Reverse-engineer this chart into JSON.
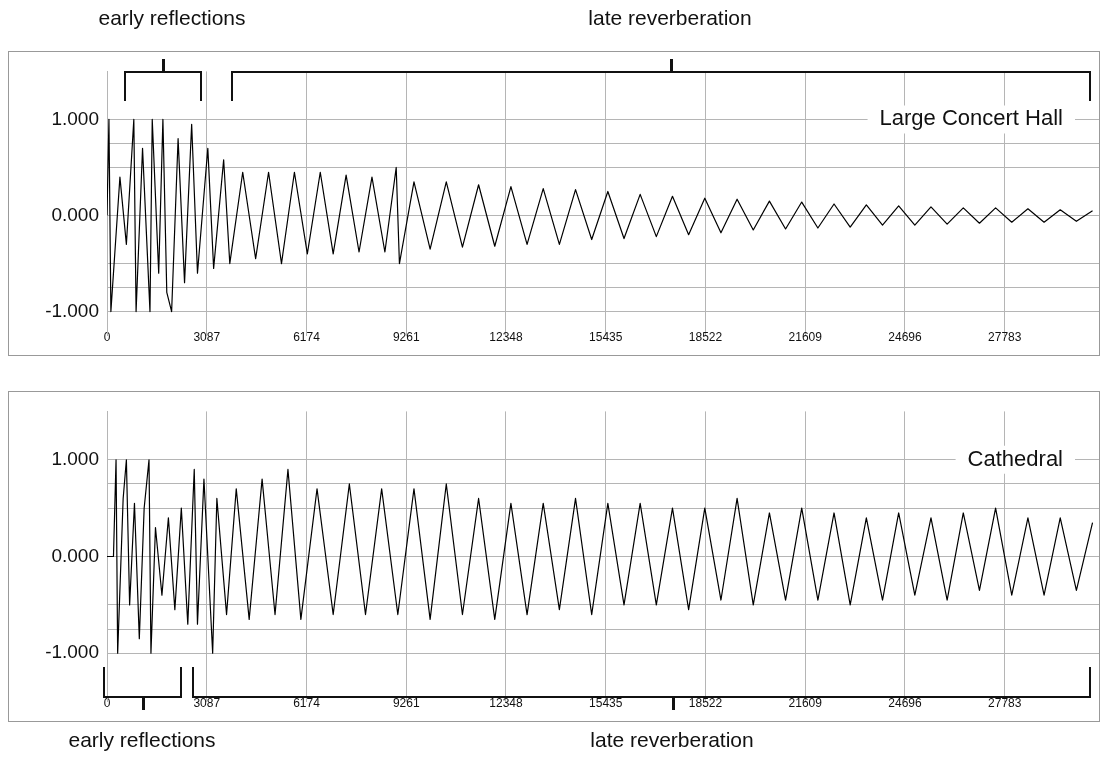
{
  "chart_data": [
    {
      "type": "line",
      "title": "Large Concert Hall",
      "annotations": [
        "early reflections",
        "late reverberation"
      ],
      "xlim": [
        0,
        30700
      ],
      "xticks": [
        0,
        3087,
        6174,
        9261,
        12348,
        15435,
        18522,
        21609,
        24696,
        27783
      ],
      "ylim": [
        -1.25,
        1.5
      ],
      "yticks": [
        {
          "value": -1,
          "label": "-1.000"
        },
        {
          "value": -0.75,
          "label": null
        },
        {
          "value": -0.5,
          "label": null
        },
        {
          "value": 0,
          "label": "0.000"
        },
        {
          "value": 0.5,
          "label": null
        },
        {
          "value": 0.75,
          "label": null
        },
        {
          "value": 1,
          "label": "1.000"
        }
      ],
      "grid": true,
      "legend": false,
      "marker": "none",
      "line_style": "solid",
      "series": [
        {
          "color": "#000000",
          "x": [
            0,
            60,
            120,
            400,
            600,
            830,
            900,
            1100,
            1330,
            1400,
            1600,
            1730,
            1850,
            2000,
            2200,
            2400,
            2620,
            2800,
            3120,
            3300,
            3610,
            3800,
            4200,
            4600,
            5000,
            5400,
            5800,
            6200,
            6600,
            7000,
            7400,
            7800,
            8200,
            8600,
            8950,
            9050,
            9500,
            10000,
            10500,
            11000,
            11500,
            12000,
            12500,
            13000,
            13500,
            14000,
            14500,
            15000,
            15500,
            16000,
            16500,
            17000,
            17500,
            18000,
            18500,
            19000,
            19500,
            20000,
            20500,
            21000,
            21500,
            22000,
            22500,
            23000,
            23500,
            24000,
            24500,
            25000,
            25500,
            26000,
            26500,
            27000,
            27500,
            28000,
            28500,
            29000,
            29500,
            30000,
            30500
          ],
          "values": [
            0,
            1.0,
            -1.0,
            0.4,
            -0.3,
            1.0,
            -1.0,
            0.7,
            -1.0,
            1.0,
            -0.6,
            1.0,
            -0.8,
            -1.0,
            0.8,
            -0.7,
            0.95,
            -0.6,
            0.7,
            -0.55,
            0.58,
            -0.5,
            0.45,
            -0.45,
            0.45,
            -0.5,
            0.45,
            -0.4,
            0.45,
            -0.4,
            0.42,
            -0.38,
            0.4,
            -0.38,
            0.5,
            -0.5,
            0.35,
            -0.35,
            0.35,
            -0.33,
            0.32,
            -0.32,
            0.3,
            -0.3,
            0.28,
            -0.3,
            0.27,
            -0.25,
            0.25,
            -0.24,
            0.22,
            -0.22,
            0.2,
            -0.2,
            0.18,
            -0.18,
            0.17,
            -0.15,
            0.15,
            -0.14,
            0.14,
            -0.13,
            0.12,
            -0.12,
            0.11,
            -0.1,
            0.1,
            -0.1,
            0.09,
            -0.09,
            0.08,
            -0.08,
            0.08,
            -0.07,
            0.07,
            -0.07,
            0.06,
            -0.06,
            0.05
          ]
        }
      ]
    },
    {
      "type": "line",
      "title": "Cathedral",
      "annotations": [
        "early reflections",
        "late reverberation"
      ],
      "xlim": [
        0,
        30700
      ],
      "xticks": [
        0,
        3087,
        6174,
        9261,
        12348,
        15435,
        18522,
        21609,
        24696,
        27783
      ],
      "ylim": [
        -1.5,
        1.5
      ],
      "yticks": [
        {
          "value": -1,
          "label": "-1.000"
        },
        {
          "value": -0.75,
          "label": null
        },
        {
          "value": -0.5,
          "label": null
        },
        {
          "value": 0,
          "label": "0.000"
        },
        {
          "value": 0.5,
          "label": null
        },
        {
          "value": 0.75,
          "label": null
        },
        {
          "value": 1,
          "label": "1.000"
        }
      ],
      "grid": true,
      "legend": false,
      "marker": "none",
      "line_style": "solid",
      "series": [
        {
          "color": "#000000",
          "x": [
            0,
            200,
            280,
            330,
            500,
            600,
            700,
            850,
            1000,
            1150,
            1300,
            1360,
            1500,
            1700,
            1900,
            2100,
            2300,
            2500,
            2700,
            2800,
            3000,
            3270,
            3400,
            3700,
            4000,
            4400,
            4800,
            5200,
            5600,
            6000,
            6500,
            7000,
            7500,
            8000,
            8500,
            9000,
            9500,
            10000,
            10500,
            11000,
            11500,
            12000,
            12500,
            13000,
            13500,
            14000,
            14500,
            15000,
            15500,
            16000,
            16500,
            17000,
            17500,
            18000,
            18500,
            19000,
            19500,
            20000,
            20500,
            21000,
            21500,
            22000,
            22500,
            23000,
            23500,
            24000,
            24500,
            25000,
            25500,
            26000,
            26500,
            27000,
            27500,
            28000,
            28500,
            29000,
            29500,
            30000,
            30500
          ],
          "values": [
            0,
            0,
            1.0,
            -1.0,
            0.6,
            1.0,
            -0.5,
            0.55,
            -0.85,
            0.5,
            1.0,
            -1.0,
            0.3,
            -0.4,
            0.4,
            -0.55,
            0.5,
            -0.7,
            0.9,
            -0.7,
            0.8,
            -1.0,
            0.6,
            -0.6,
            0.7,
            -0.65,
            0.8,
            -0.6,
            0.9,
            -0.65,
            0.7,
            -0.6,
            0.75,
            -0.6,
            0.7,
            -0.6,
            0.7,
            -0.65,
            0.75,
            -0.6,
            0.6,
            -0.65,
            0.55,
            -0.6,
            0.55,
            -0.55,
            0.6,
            -0.6,
            0.55,
            -0.5,
            0.55,
            -0.5,
            0.5,
            -0.55,
            0.5,
            -0.45,
            0.6,
            -0.5,
            0.45,
            -0.45,
            0.5,
            -0.45,
            0.45,
            -0.5,
            0.4,
            -0.45,
            0.45,
            -0.4,
            0.4,
            -0.45,
            0.45,
            -0.35,
            0.5,
            -0.4,
            0.4,
            -0.4,
            0.4,
            -0.35,
            0.35
          ]
        }
      ]
    }
  ]
}
